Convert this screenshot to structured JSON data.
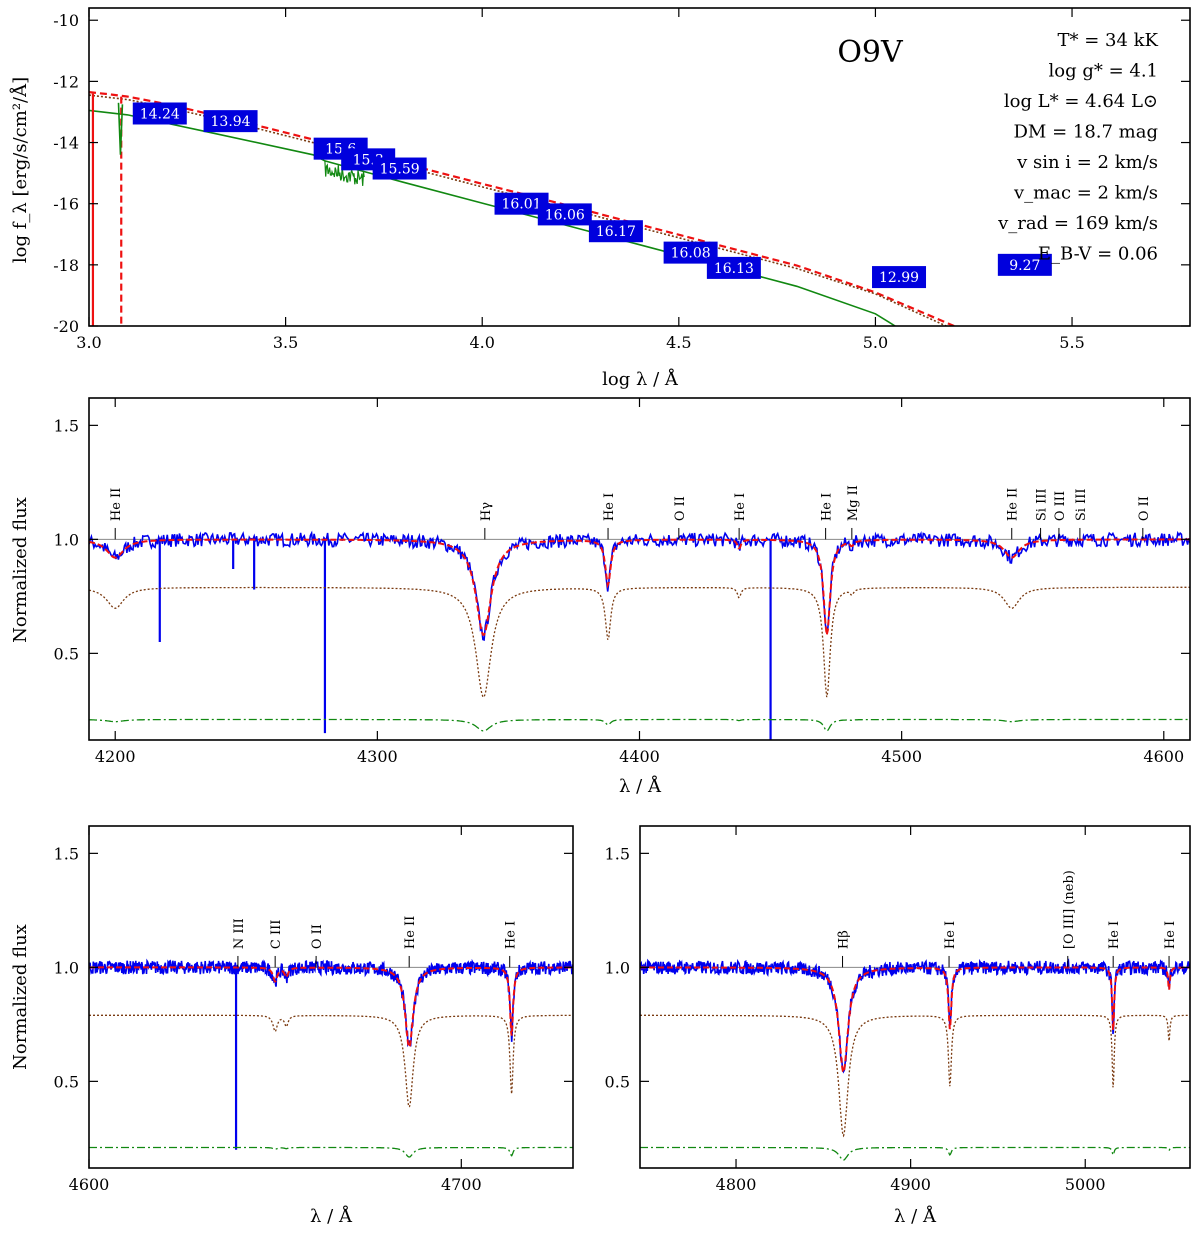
{
  "figure_title": "O9V",
  "parameters": [
    {
      "label": "T* = 34 kK"
    },
    {
      "label": "log g* = 4.1"
    },
    {
      "label": "log L* = 4.64 L⊙"
    },
    {
      "label": "DM = 18.7 mag"
    },
    {
      "label": "v sin i = 2 km/s"
    },
    {
      "label": "v_mac = 2 km/s"
    },
    {
      "label": "v_rad = 169 km/s"
    },
    {
      "label": "E_B-V = 0.06"
    }
  ],
  "colors": {
    "observed": "#0000ee",
    "model": "#ee1111",
    "photosphere": "#7a3a10",
    "star_component": "#118811",
    "magbox": "#0000dd",
    "zero_line": "#888888"
  },
  "chart_data": [
    {
      "id": "sed",
      "type": "line",
      "title": "O9V",
      "xlabel": "log λ / Å",
      "ylabel": "log f_λ [erg/s/cm²/Å]",
      "xlim": [
        3.0,
        5.8
      ],
      "ylim": [
        -20,
        -9.6
      ],
      "xticks": [
        3.0,
        3.5,
        4.0,
        4.5,
        5.0,
        5.5
      ],
      "xtick_labels": [
        "3.0",
        "3.5",
        "4.0",
        "4.5",
        "5.0",
        "5.5"
      ],
      "yticks": [
        -20,
        -18,
        -16,
        -14,
        -12,
        -10
      ],
      "ytick_labels": [
        "-20",
        "-18",
        "-16",
        "-14",
        "-12",
        "-10"
      ],
      "series": [
        {
          "name": "model SED (dashed)",
          "x": [
            3.0,
            3.02,
            3.05,
            3.1,
            3.2,
            3.4,
            3.6,
            3.8,
            4.0,
            4.2,
            4.4,
            4.6,
            4.8,
            5.0,
            5.2
          ],
          "y": [
            -12.35,
            -12.38,
            -12.42,
            -12.5,
            -12.75,
            -13.35,
            -14.0,
            -14.68,
            -15.35,
            -16.0,
            -16.68,
            -17.35,
            -18.02,
            -18.9,
            -20.0
          ]
        },
        {
          "name": "reddened SED (dotted)",
          "x": [
            3.0,
            3.1,
            3.2,
            3.4,
            3.6,
            3.8,
            4.0,
            4.2,
            4.4,
            4.6,
            4.8,
            5.0,
            5.18
          ],
          "y": [
            -12.45,
            -12.6,
            -12.85,
            -13.45,
            -14.1,
            -14.78,
            -15.45,
            -16.1,
            -16.78,
            -17.45,
            -18.12,
            -18.95,
            -20.0
          ]
        },
        {
          "name": "stellar component (solid)",
          "x": [
            3.0,
            3.1,
            3.3,
            3.57,
            3.6,
            3.8,
            4.0,
            4.2,
            4.4,
            4.6,
            4.8,
            5.0,
            5.05
          ],
          "y": [
            -12.95,
            -13.1,
            -13.65,
            -14.4,
            -14.6,
            -15.3,
            -15.98,
            -16.66,
            -17.34,
            -18.02,
            -18.7,
            -19.6,
            -20.0
          ]
        }
      ],
      "photometry": [
        {
          "label": "14.24",
          "x": 3.18,
          "y": -13.05
        },
        {
          "label": "13.94",
          "x": 3.36,
          "y": -13.3
        },
        {
          "label": "15.6",
          "x": 3.64,
          "y": -14.2
        },
        {
          "label": "15.3",
          "x": 3.71,
          "y": -14.55
        },
        {
          "label": "15.59",
          "x": 3.79,
          "y": -14.85
        },
        {
          "label": "16.01",
          "x": 4.1,
          "y": -16.0
        },
        {
          "label": "16.06",
          "x": 4.21,
          "y": -16.35
        },
        {
          "label": "16.17",
          "x": 4.34,
          "y": -16.9
        },
        {
          "label": "16.08",
          "x": 4.53,
          "y": -17.6
        },
        {
          "label": "16.13",
          "x": 4.64,
          "y": -18.1
        },
        {
          "label": "12.99",
          "x": 5.06,
          "y": -18.4
        },
        {
          "label": "9.27",
          "x": 5.38,
          "y": -18.0
        }
      ]
    },
    {
      "id": "blue",
      "type": "line",
      "xlabel": "λ / Å",
      "ylabel": "Normalized flux",
      "xlim": [
        4190,
        4610
      ],
      "ylim": [
        0.12,
        1.62
      ],
      "xticks": [
        4200,
        4300,
        4400,
        4500,
        4600
      ],
      "xtick_labels": [
        "4200",
        "4300",
        "4400",
        "4500",
        "4600"
      ],
      "yticks": [
        0.5,
        1.0,
        1.5
      ],
      "ytick_labels": [
        "0.5",
        "1.0",
        "1.5"
      ],
      "lines": [
        {
          "label": "He II",
          "x": 4200
        },
        {
          "label": "Hγ",
          "x": 4341
        },
        {
          "label": "He I",
          "x": 4388
        },
        {
          "label": "O II",
          "x": 4415
        },
        {
          "label": "He I",
          "x": 4438
        },
        {
          "label": "He I",
          "x": 4471
        },
        {
          "label": "Mg II",
          "x": 4481
        },
        {
          "label": "He II",
          "x": 4542
        },
        {
          "label": "Si III",
          "x": 4553
        },
        {
          "label": "O III",
          "x": 4560
        },
        {
          "label": "Si III",
          "x": 4568
        },
        {
          "label": "O II",
          "x": 4592
        }
      ],
      "absorption": [
        {
          "center": 4200,
          "depth": 0.08,
          "width": 4
        },
        {
          "center": 4340.5,
          "depth": 0.42,
          "width": 3.5
        },
        {
          "center": 4388,
          "depth": 0.2,
          "width": 1.2
        },
        {
          "center": 4471.5,
          "depth": 0.42,
          "width": 1.5
        },
        {
          "center": 4542,
          "depth": 0.08,
          "width": 3.5
        },
        {
          "center": 4438,
          "depth": 0.04,
          "width": 0.8
        },
        {
          "center": 4481,
          "depth": 0.02,
          "width": 0.8
        }
      ],
      "spikes": [
        {
          "x": 4280,
          "y": 0.15
        },
        {
          "x": 4450,
          "y": 0.12
        },
        {
          "x": 4217,
          "y": 0.55
        },
        {
          "x": 4245,
          "y": 0.87
        },
        {
          "x": 4253,
          "y": 0.78
        }
      ],
      "offsets": {
        "photosphere": -0.21,
        "star_component": -0.79
      }
    },
    {
      "id": "mid",
      "type": "line",
      "xlabel": "λ / Å",
      "ylabel": "Normalized flux",
      "xlim": [
        4600,
        4730
      ],
      "ylim": [
        0.12,
        1.62
      ],
      "xticks": [
        4600,
        4700
      ],
      "xtick_labels": [
        "4600",
        "4700"
      ],
      "yticks": [
        0.5,
        1.0,
        1.5
      ],
      "ytick_labels": [
        "0.5",
        "1.0",
        "1.5"
      ],
      "lines": [
        {
          "label": "N III",
          "x": 4640
        },
        {
          "label": "C III",
          "x": 4650
        },
        {
          "label": "O II",
          "x": 4661
        },
        {
          "label": "He II",
          "x": 4686
        },
        {
          "label": "He I",
          "x": 4713
        }
      ],
      "absorption": [
        {
          "center": 4686,
          "depth": 0.35,
          "width": 1.3
        },
        {
          "center": 4713.5,
          "depth": 0.3,
          "width": 0.5
        },
        {
          "center": 4650,
          "depth": 0.06,
          "width": 0.7
        },
        {
          "center": 4653,
          "depth": 0.04,
          "width": 0.6
        }
      ],
      "spikes": [
        {
          "x": 4639.5,
          "y": 0.2
        }
      ],
      "offsets": {
        "photosphere": -0.21,
        "star_component": -0.79
      }
    },
    {
      "id": "red",
      "type": "line",
      "xlabel": "λ / Å",
      "ylabel": "",
      "xlim": [
        4745,
        5060
      ],
      "ylim": [
        0.12,
        1.62
      ],
      "xticks": [
        4800,
        4900,
        5000
      ],
      "xtick_labels": [
        "4800",
        "4900",
        "5000"
      ],
      "yticks": [
        0.5,
        1.0,
        1.5
      ],
      "ytick_labels": [
        "0.5",
        "1.0",
        "1.5"
      ],
      "lines": [
        {
          "label": "Hβ",
          "x": 4861
        },
        {
          "label": "He I",
          "x": 4922
        },
        {
          "label": "[O III] (neb)",
          "x": 4990
        },
        {
          "label": "He I",
          "x": 5016
        },
        {
          "label": "He I",
          "x": 5048
        }
      ],
      "absorption": [
        {
          "center": 4861.5,
          "depth": 0.46,
          "width": 3.2
        },
        {
          "center": 4922.5,
          "depth": 0.27,
          "width": 1.0
        },
        {
          "center": 5016,
          "depth": 0.28,
          "width": 0.7
        },
        {
          "center": 5048,
          "depth": 0.1,
          "width": 0.6
        }
      ],
      "spikes": [],
      "offsets": {
        "photosphere": -0.21,
        "star_component": -0.79
      }
    }
  ]
}
